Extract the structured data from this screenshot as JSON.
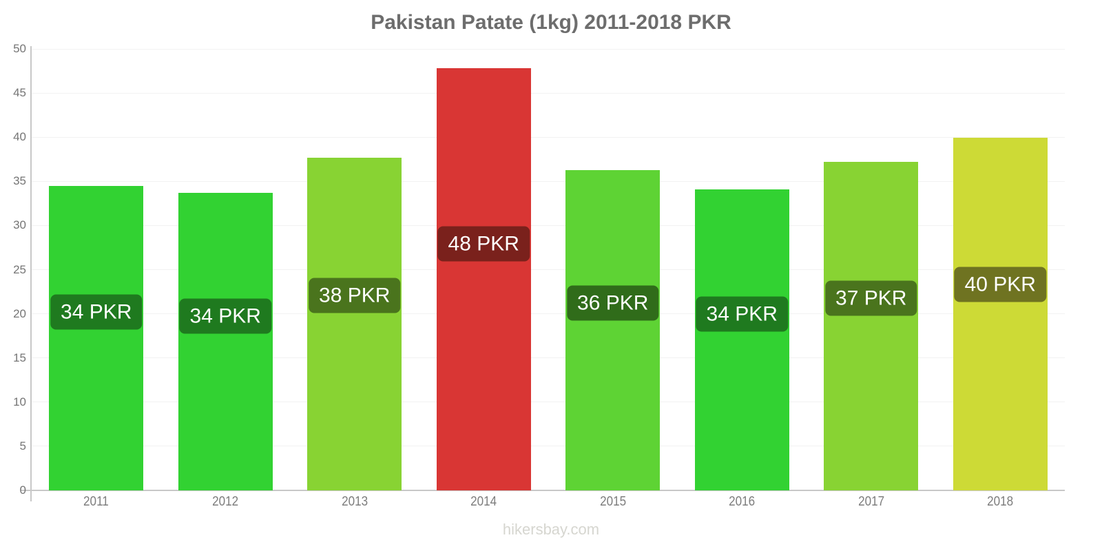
{
  "page": {
    "title": "Pakistan Patate (1kg) 2011-2018 PKR",
    "watermark": "hikersbay.com"
  },
  "chart_data": {
    "type": "bar",
    "title": "Pakistan Patate (1kg) 2011-2018 PKR",
    "currency": "PKR",
    "categories": [
      "2011",
      "2012",
      "2013",
      "2014",
      "2015",
      "2016",
      "2017",
      "2018"
    ],
    "values": [
      34.5,
      33.7,
      37.7,
      47.8,
      36.3,
      34.1,
      37.2,
      39.9
    ],
    "bar_labels": [
      "34 PKR",
      "34 PKR",
      "38 PKR",
      "48 PKR",
      "36 PKR",
      "34 PKR",
      "37 PKR",
      "40 PKR"
    ],
    "bar_colors": [
      "#32d232",
      "#32d232",
      "#88d333",
      "#d93634",
      "#5ed334",
      "#32d232",
      "#88d333",
      "#cdda36"
    ],
    "label_bg_colors": [
      "#1f7a1f",
      "#1f7a1f",
      "#4a741d",
      "#7a211c",
      "#306c1a",
      "#1f7a1f",
      "#4a741d",
      "#6f7321"
    ],
    "label_text_color": "#ffffff",
    "xlabel": "",
    "ylabel": "",
    "ylim": [
      0,
      50
    ],
    "yticks": [
      0,
      5,
      10,
      15,
      20,
      25,
      30,
      35,
      40,
      45,
      50
    ],
    "grid": true,
    "legend": false
  }
}
